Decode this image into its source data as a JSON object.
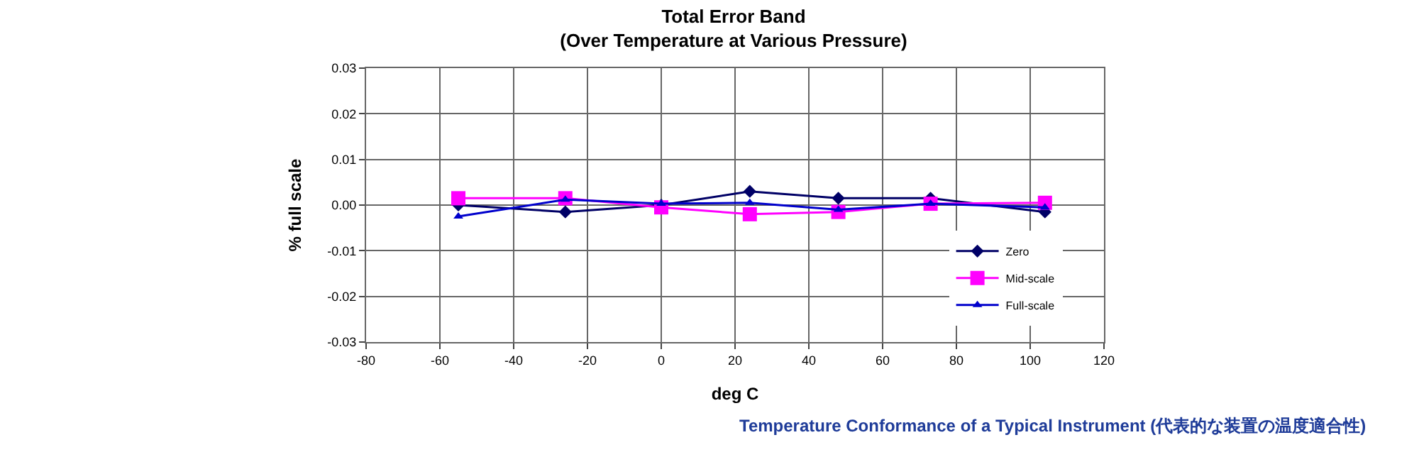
{
  "chart_data": {
    "type": "line",
    "title": "Total Error Band\n(Over Temperature at Various Pressure)",
    "xlabel": "deg C",
    "ylabel": "% full scale",
    "x": [
      -55,
      -26,
      0,
      24,
      48,
      73,
      104
    ],
    "series": [
      {
        "name": "Zero",
        "color": "#000066",
        "marker": "diamond",
        "values": [
          0.0,
          -0.0015,
          0.0,
          0.003,
          0.0015,
          0.0015,
          -0.0015
        ]
      },
      {
        "name": "Mid-scale",
        "color": "#ff00ff",
        "marker": "square",
        "values": [
          0.0015,
          0.0015,
          -0.0005,
          -0.002,
          -0.0015,
          0.0003,
          0.0005
        ]
      },
      {
        "name": "Full-scale",
        "color": "#0000cc",
        "marker": "triangle",
        "values": [
          -0.0025,
          0.0012,
          0.0003,
          0.0005,
          -0.001,
          0.0003,
          -0.0005
        ]
      }
    ],
    "xlim": [
      -80,
      120
    ],
    "xticks": [
      -80,
      -60,
      -40,
      -20,
      0,
      20,
      40,
      60,
      80,
      100,
      120
    ],
    "ylim": [
      -0.03,
      0.03
    ],
    "yticks": [
      {
        "value": -0.03,
        "label": "-0.03"
      },
      {
        "value": -0.02,
        "label": "-0.02"
      },
      {
        "value": -0.01,
        "label": "-0.01"
      },
      {
        "value": 0,
        "label": "0.00"
      },
      {
        "value": 0.01,
        "label": "0.01"
      },
      {
        "value": 0.02,
        "label": "0.02"
      },
      {
        "value": 0.03,
        "label": "0.03"
      }
    ],
    "grid": true,
    "legend": "bottom right",
    "line_style": "solid",
    "annotations": [
      "Temperature Conformance of a Typical Instrument (代表的な装置の温度適合性)"
    ]
  }
}
